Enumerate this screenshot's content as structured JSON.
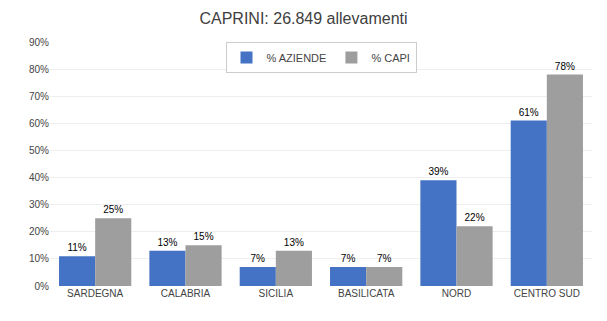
{
  "chart_data": {
    "type": "bar",
    "title": "CAPRINI: 26.849 allevamenti",
    "categories": [
      "SARDEGNA",
      "CALABRIA",
      "SICILIA",
      "BASILICATA",
      "NORD",
      "CENTRO SUD"
    ],
    "series": [
      {
        "name": "% AZIENDE",
        "color": "#4472C4",
        "values": [
          11,
          13,
          7,
          7,
          39,
          61
        ],
        "value_labels": [
          "11%",
          "13%",
          "7%",
          "7%",
          "39%",
          "61%"
        ]
      },
      {
        "name": "% CAPI",
        "color": "#9E9E9E",
        "values": [
          25,
          15,
          13,
          7,
          22,
          78
        ],
        "value_labels": [
          "25%",
          "15%",
          "13%",
          "7%",
          "22%",
          "78%"
        ]
      }
    ],
    "ylim": [
      0,
      90
    ],
    "yticks": [
      {
        "value": 0,
        "label": "0%"
      },
      {
        "value": 10,
        "label": "10%"
      },
      {
        "value": 20,
        "label": "20%"
      },
      {
        "value": 30,
        "label": "30%"
      },
      {
        "value": 40,
        "label": "40%"
      },
      {
        "value": 50,
        "label": "50%"
      },
      {
        "value": 60,
        "label": "60%"
      },
      {
        "value": 70,
        "label": "70%"
      },
      {
        "value": 80,
        "label": "80%"
      },
      {
        "value": 90,
        "label": "90%"
      }
    ],
    "grid": true,
    "legend": "upper center",
    "data_labels": true
  }
}
